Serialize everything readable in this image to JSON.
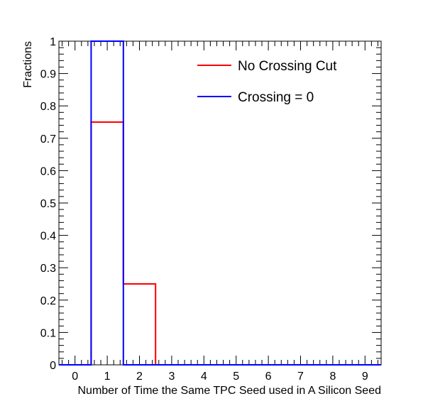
{
  "chart_data": {
    "type": "bar",
    "style": "step-histogram",
    "title": "",
    "xlabel": "Number of Time the Same TPC Seed used in A Silicon Seed",
    "ylabel": "Fractions",
    "xlim": [
      -0.5,
      9.5
    ],
    "ylim": [
      0,
      1
    ],
    "bin_edges": [
      -0.5,
      0.5,
      1.5,
      2.5,
      3.5,
      4.5,
      5.5,
      6.5,
      7.5,
      8.5,
      9.5
    ],
    "x_ticks": [
      "0",
      "1",
      "2",
      "3",
      "4",
      "5",
      "6",
      "7",
      "8",
      "9"
    ],
    "y_ticks": [
      "0",
      "0.1",
      "0.2",
      "0.3",
      "0.4",
      "0.5",
      "0.6",
      "0.7",
      "0.8",
      "0.9",
      "1"
    ],
    "legend_position": "top-right",
    "grid": false,
    "series": [
      {
        "name": "No Crossing Cut",
        "color": "#ff0000",
        "values": [
          0,
          0.75,
          0.25,
          0,
          0,
          0,
          0,
          0,
          0,
          0
        ]
      },
      {
        "name": "Crossing = 0",
        "color": "#0000ff",
        "values": [
          0,
          1.0,
          0,
          0,
          0,
          0,
          0,
          0,
          0,
          0
        ]
      }
    ]
  }
}
